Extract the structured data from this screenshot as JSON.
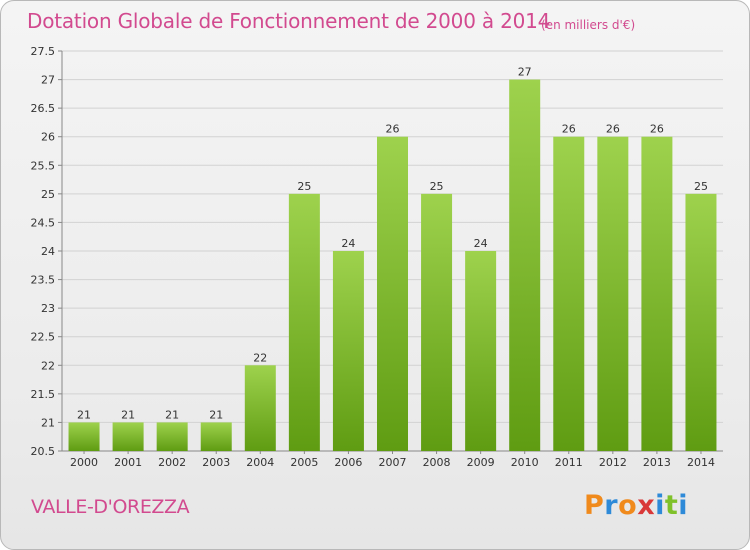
{
  "header": {
    "title": "Dotation Globale de Fonctionnement de 2000 à 2014",
    "unit": "(en milliers d'€)"
  },
  "footer": {
    "commune": "VALLE-D'OREZZA",
    "logo_text": "Proxiti"
  },
  "colors": {
    "title": "#d24a8f",
    "bar_light": "#9ed24d",
    "bar_dark": "#5f9c12",
    "grid": "#cfcfcf"
  },
  "chart_data": {
    "type": "bar",
    "title": "Dotation Globale de Fonctionnement de 2000 à 2014",
    "xlabel": "",
    "ylabel": "",
    "categories": [
      "2000",
      "2001",
      "2002",
      "2003",
      "2004",
      "2005",
      "2006",
      "2007",
      "2008",
      "2009",
      "2010",
      "2011",
      "2012",
      "2013",
      "2014"
    ],
    "values": [
      21,
      21,
      21,
      21,
      22,
      25,
      24,
      26,
      25,
      24,
      27,
      26,
      26,
      26,
      25
    ],
    "data_labels": [
      "21",
      "21",
      "21",
      "21",
      "22",
      "25",
      "24",
      "26",
      "25",
      "24",
      "27",
      "26",
      "26",
      "26",
      "25"
    ],
    "ylim": [
      20.5,
      27.5
    ],
    "yticks": [
      20.5,
      21,
      21.5,
      22,
      22.5,
      23,
      23.5,
      24,
      24.5,
      25,
      25.5,
      26,
      26.5,
      27,
      27.5
    ],
    "ytick_labels": [
      "20.5",
      "21",
      "21.5",
      "22",
      "22.5",
      "23",
      "23.5",
      "24",
      "24.5",
      "25",
      "25.5",
      "26",
      "26.5",
      "27",
      "27.5"
    ],
    "grid": true
  }
}
